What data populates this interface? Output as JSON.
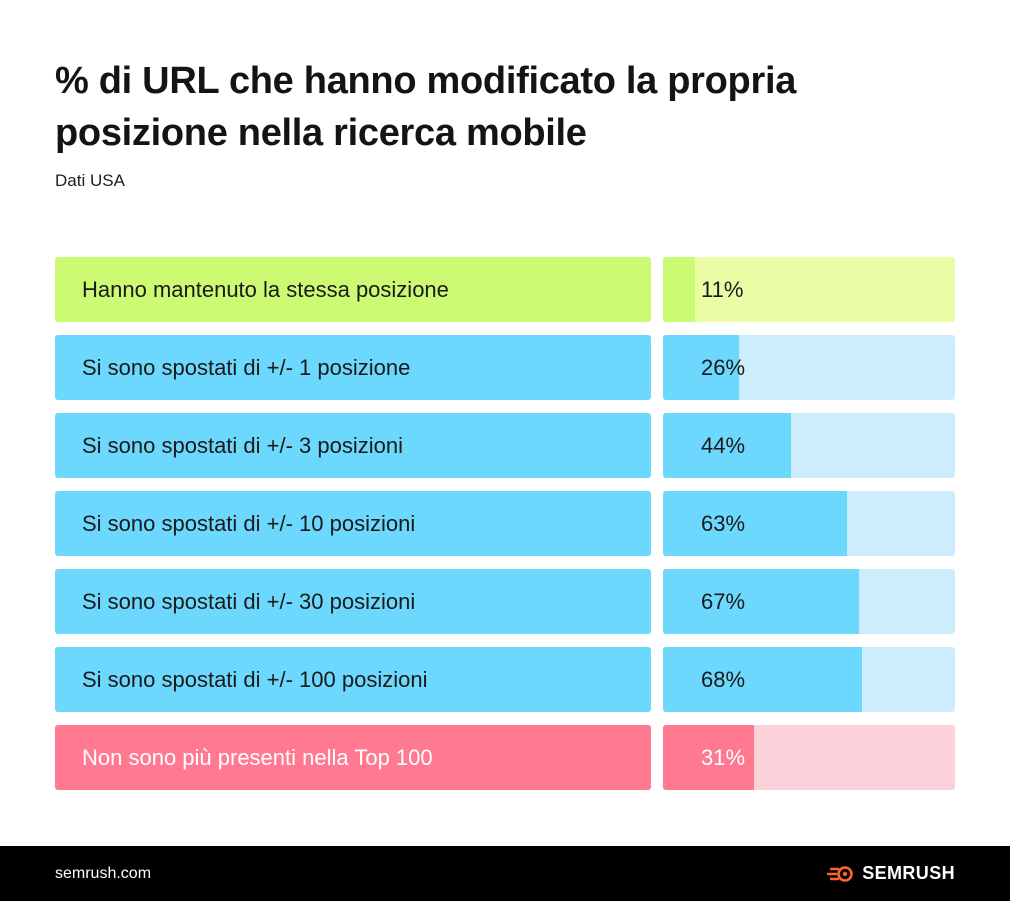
{
  "title": "% di URL che hanno modificato la propria posizione nella ricerca mobile",
  "subtitle": "Dati USA",
  "chart_data": {
    "type": "bar",
    "orientation": "horizontal",
    "title": "% di URL che hanno modificato la propria posizione nella ricerca mobile",
    "subtitle": "Dati USA",
    "xlim": [
      0,
      100
    ],
    "unit": "%",
    "categories": [
      "Hanno mantenuto la stessa posizione",
      "Si sono spostati di +/- 1 posizione",
      "Si sono spostati di +/- 3 posizioni",
      "Si sono spostati di +/- 10 posizioni",
      "Si sono spostati di +/- 30 posizioni",
      "Si sono spostati di +/- 100 posizioni",
      "Non sono più presenti nella Top 100"
    ],
    "values": [
      11,
      26,
      44,
      63,
      67,
      68,
      31
    ],
    "value_labels": [
      "11%",
      "26%",
      "44%",
      "63%",
      "67%",
      "68%",
      "31%"
    ],
    "colors": {
      "green_label": "#ccfb73",
      "green_fill": "#ccfb73",
      "green_track": "#eafda5",
      "blue_label": "#6dd8fd",
      "blue_fill": "#6dd8fd",
      "blue_track": "#cdecfc",
      "red_label": "#ff7a91",
      "red_fill": "#ff7a91",
      "red_label_text": "#ffffff",
      "red_track": "#fbd1da"
    },
    "row_color_groups": [
      "green",
      "blue",
      "blue",
      "blue",
      "blue",
      "blue",
      "red"
    ]
  },
  "footer": {
    "url": "semrush.com",
    "brand": "SEMRUSH",
    "brand_icon": "semrush-logo-icon",
    "brand_icon_color": "#ff642d"
  }
}
